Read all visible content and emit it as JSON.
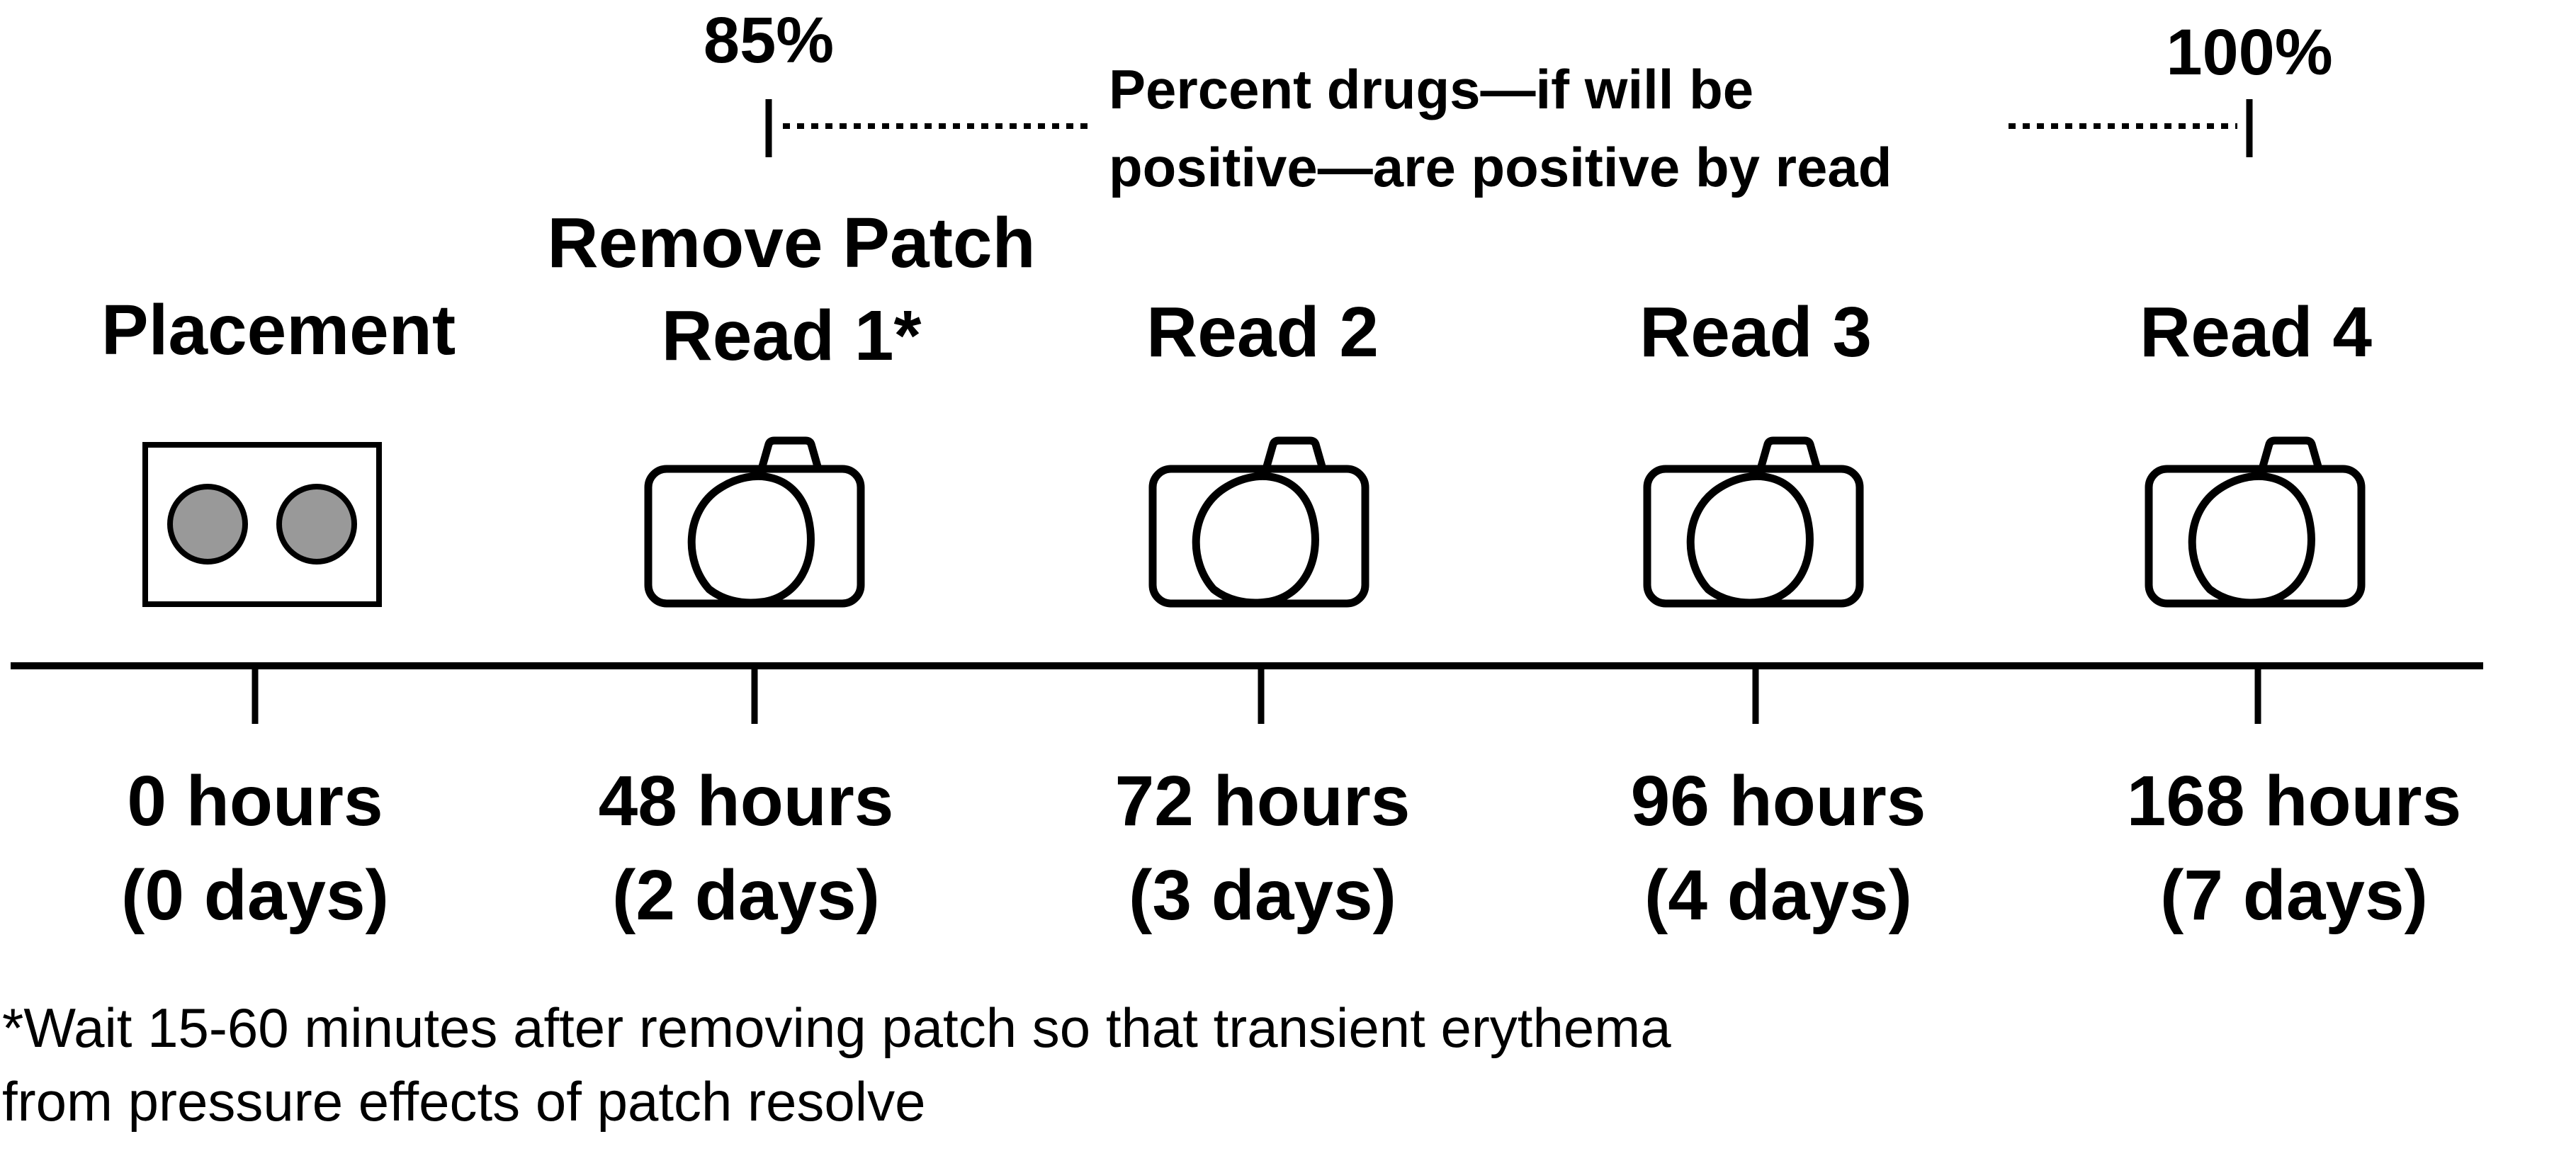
{
  "range_bracket": {
    "start_label": "85%",
    "end_label": "100%",
    "caption_line1": "Percent drugs—if will be",
    "caption_line2": "positive—are positive by read"
  },
  "stages": [
    {
      "label_lines": [
        "Placement"
      ],
      "icon": "patch-icon",
      "time_hours": "0 hours",
      "time_days": "(0 days)"
    },
    {
      "label_lines": [
        "Remove Patch",
        "Read 1*"
      ],
      "icon": "camera-icon",
      "time_hours": "48 hours",
      "time_days": "(2 days)"
    },
    {
      "label_lines": [
        "Read 2"
      ],
      "icon": "camera-icon",
      "time_hours": "72 hours",
      "time_days": "(3 days)"
    },
    {
      "label_lines": [
        "Read 3"
      ],
      "icon": "camera-icon",
      "time_hours": "96 hours",
      "time_days": "(4 days)"
    },
    {
      "label_lines": [
        "Read 4"
      ],
      "icon": "camera-icon",
      "time_hours": "168 hours",
      "time_days": "(7 days)"
    }
  ],
  "footnote": {
    "line1": "*Wait 15-60 minutes after removing patch so that transient erythema",
    "line2": "from pressure effects of patch resolve"
  },
  "colors": {
    "line": "#000000",
    "patch_dot": "#999999",
    "background": "#ffffff"
  }
}
